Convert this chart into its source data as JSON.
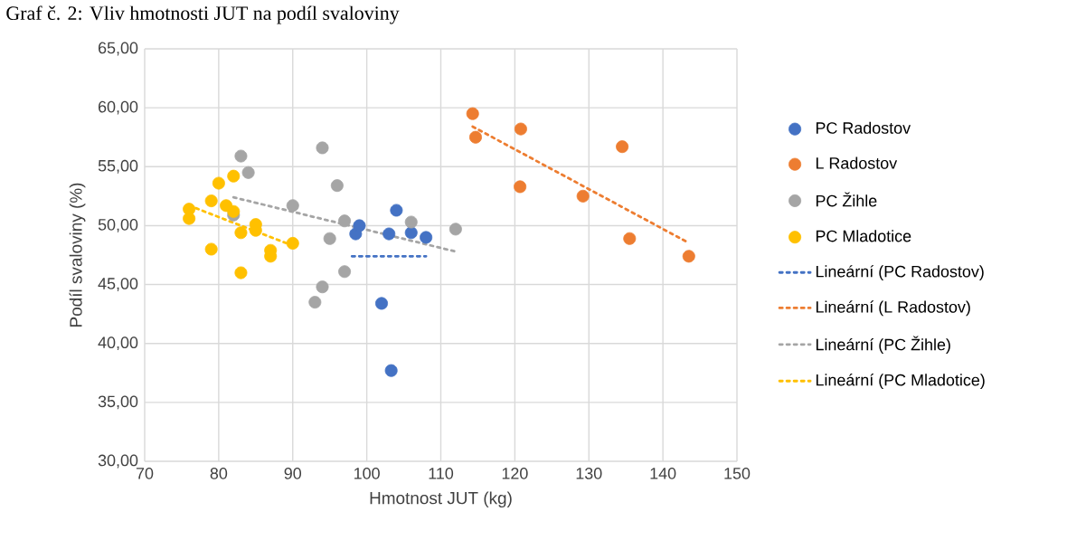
{
  "chart_data": {
    "type": "scatter",
    "title": "Graf č. 2: Vliv hmotnosti JUT na podíl svaloviny",
    "xlabel": "Hmotnost JUT (kg)",
    "ylabel": "Podíl svaloviny (%)",
    "xlim": [
      70,
      150
    ],
    "xticks": [
      70,
      80,
      90,
      100,
      110,
      120,
      130,
      140,
      150
    ],
    "ylim": [
      30,
      65
    ],
    "yticks": [
      {
        "value": 30,
        "label": "30,00"
      },
      {
        "value": 35,
        "label": "35,00"
      },
      {
        "value": 40,
        "label": "40,00"
      },
      {
        "value": 45,
        "label": "45,00"
      },
      {
        "value": 50,
        "label": "50,00"
      },
      {
        "value": 55,
        "label": "55,00"
      },
      {
        "value": 60,
        "label": "60,00"
      },
      {
        "value": 65,
        "label": "65,00"
      }
    ],
    "grid": true,
    "legend": "right",
    "marker": "circle",
    "series": [
      {
        "name": "PC Radostov",
        "color": "#4472c4",
        "x": [
          98.5,
          99,
          102,
          103,
          103.3,
          104,
          106,
          108
        ],
        "values": [
          49.3,
          50.0,
          43.4,
          49.3,
          37.7,
          51.3,
          49.4,
          49.0
        ]
      },
      {
        "name": "L Radostov",
        "color": "#ed7d31",
        "x": [
          114.3,
          114.7,
          120.8,
          120.7,
          129.2,
          134.5,
          135.5,
          143.5
        ],
        "values": [
          59.5,
          57.5,
          58.2,
          53.3,
          52.5,
          56.7,
          48.9,
          47.4
        ]
      },
      {
        "name": "PC Žihle",
        "color": "#a5a5a5",
        "x": [
          82,
          83,
          84,
          90,
          93,
          94,
          94,
          95,
          96,
          97,
          97,
          106,
          112
        ],
        "values": [
          50.9,
          55.9,
          54.5,
          51.7,
          43.5,
          56.6,
          44.8,
          48.9,
          53.4,
          50.4,
          46.1,
          50.3,
          49.7
        ]
      },
      {
        "name": "PC Mladotice",
        "color": "#ffc000",
        "x": [
          76,
          76,
          79,
          79,
          80,
          81,
          82,
          82,
          83,
          83,
          85,
          85,
          87,
          87,
          90
        ],
        "values": [
          51.4,
          50.6,
          52.1,
          48.0,
          53.6,
          51.7,
          54.2,
          51.2,
          49.4,
          46.0,
          50.1,
          49.6,
          47.9,
          47.4,
          48.5
        ]
      },
      {
        "name": "Lineární (PC Radostov)",
        "type": "line",
        "line_style": "dotted",
        "marker": "none",
        "color": "#4472c4",
        "x": [
          98,
          108
        ],
        "values": [
          47.4,
          47.4
        ]
      },
      {
        "name": "Lineární (L Radostov)",
        "type": "line",
        "line_style": "dotted",
        "marker": "none",
        "color": "#ed7d31",
        "x": [
          114.3,
          143.3
        ],
        "values": [
          58.4,
          48.6
        ]
      },
      {
        "name": "Lineární (PC Žihle)",
        "type": "line",
        "line_style": "dotted",
        "marker": "none",
        "color": "#a5a5a5",
        "x": [
          82,
          112
        ],
        "values": [
          52.4,
          47.8
        ]
      },
      {
        "name": "Lineární (PC Mladotice)",
        "type": "line",
        "line_style": "dotted",
        "marker": "none",
        "color": "#ffc000",
        "x": [
          76,
          90
        ],
        "values": [
          51.7,
          48.3
        ]
      }
    ]
  }
}
